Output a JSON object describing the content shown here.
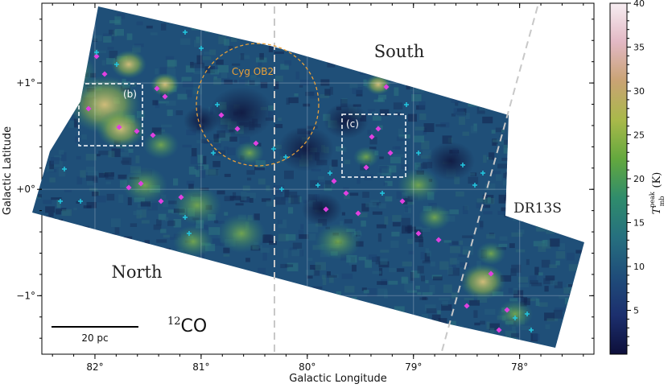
{
  "chart_data": {
    "type": "heatmap",
    "xlabel": "Galactic Longitude",
    "ylabel": "Galactic Latitude",
    "x_ticks": [
      "82°",
      "81°",
      "80°",
      "79°",
      "78°"
    ],
    "x_tick_values": [
      82,
      81,
      80,
      79,
      78
    ],
    "y_ticks": [
      "+1°",
      "+0°",
      "−1°"
    ],
    "y_tick_values": [
      1,
      0,
      -1
    ],
    "xlim": [
      82.5,
      77.3
    ],
    "ylim": [
      -1.55,
      1.75
    ],
    "colorbar": {
      "label": "T_mb^peak (K)",
      "ticks": [
        "5",
        "10",
        "15",
        "20",
        "25",
        "30",
        "35",
        "40"
      ],
      "tick_values": [
        5,
        10,
        15,
        20,
        25,
        30,
        35,
        40
      ],
      "range": [
        0,
        40
      ],
      "colormap": [
        "#0d0f3a",
        "#1c2f6e",
        "#1f4d7a",
        "#26707f",
        "#2f8c6c",
        "#63a83e",
        "#a9b94a",
        "#c9a373",
        "#e3b8c4",
        "#f7eef2"
      ]
    },
    "region_labels": [
      "South",
      "North",
      "DR13S"
    ],
    "tracer": {
      "mass_number": "12",
      "molecule": "CO"
    },
    "scale_bar": "20 pc",
    "circle_label": "Cyg OB2",
    "boxes": [
      "(b)",
      "(c)"
    ]
  },
  "colors": {
    "circle": "#e8a03a",
    "magenta_markers": "#e040e0",
    "cyan_markers": "#22c8e0",
    "dashed_lines": "#c8c8c8",
    "boxes": "#ffffff"
  }
}
